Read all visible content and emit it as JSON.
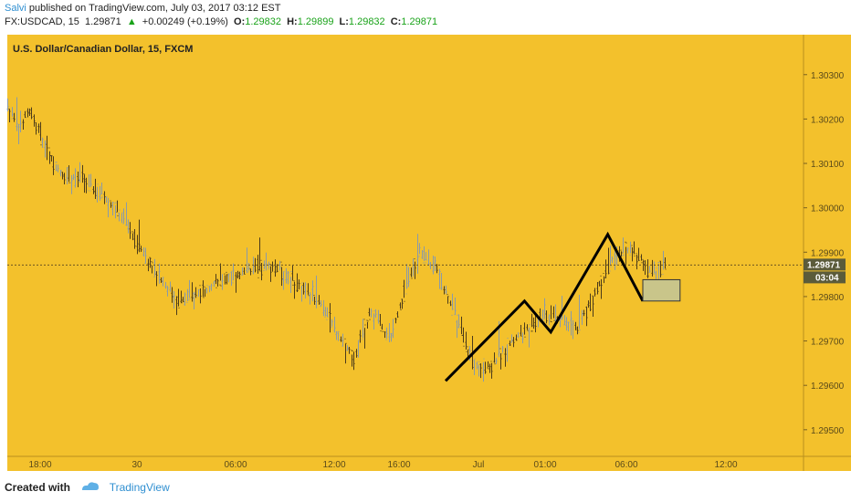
{
  "header": {
    "author": "Salvi",
    "published_text": "published on TradingView.com, July 03, 2017 03:12 EST",
    "symbol": "FX:USDCAD, 15",
    "last": "1.29871",
    "change": "+0.00249 (+0.19%)",
    "o_label": "O:",
    "o_value": "1.29832",
    "h_label": "H:",
    "h_value": "1.29899",
    "l_label": "L:",
    "l_value": "1.29832",
    "c_label": "C:",
    "c_value": "1.29871"
  },
  "footer": {
    "created_with": "Created with",
    "brand": "TradingView"
  },
  "colors": {
    "background": "#f3c12c",
    "bar": "#8a9aa8",
    "bar_dark": "#4a3a1a",
    "line": "#000000",
    "box_fill": "#c9c58a",
    "price_tag": "#5b5b3a"
  },
  "icons": [
    "up-triangle-icon",
    "tradingview-cloud-icon"
  ],
  "chart_data": {
    "type": "ohlc",
    "title": "U.S. Dollar/Canadian Dollar, 15, FXCM",
    "y_ticks": [
      "1.30300",
      "1.30200",
      "1.30100",
      "1.30000",
      "1.29900",
      "1.29800",
      "1.29700",
      "1.29600",
      "1.29500"
    ],
    "y_tick_values": [
      1.303,
      1.302,
      1.301,
      1.3,
      1.299,
      1.298,
      1.297,
      1.296,
      1.295
    ],
    "ylim": [
      1.2944,
      1.3039
    ],
    "x_ticks": [
      "18:00",
      "30",
      "06:00",
      "12:00",
      "16:00",
      "Jul",
      "01:00",
      "06:00",
      "12:00"
    ],
    "current_price": "1.29871",
    "current_price_value": 1.29871,
    "countdown": "03:04",
    "price_path": [
      {
        "t": 0,
        "p": 1.3023
      },
      {
        "t": 5,
        "p": 1.3018
      },
      {
        "t": 10,
        "p": 1.3022
      },
      {
        "t": 16,
        "p": 1.3015
      },
      {
        "t": 24,
        "p": 1.3008
      },
      {
        "t": 34,
        "p": 1.3006
      },
      {
        "t": 44,
        "p": 1.3003
      },
      {
        "t": 52,
        "p": 1.2998
      },
      {
        "t": 62,
        "p": 1.299
      },
      {
        "t": 70,
        "p": 1.2984
      },
      {
        "t": 78,
        "p": 1.2979
      },
      {
        "t": 88,
        "p": 1.2981
      },
      {
        "t": 98,
        "p": 1.2984
      },
      {
        "t": 110,
        "p": 1.2986
      },
      {
        "t": 122,
        "p": 1.2987
      },
      {
        "t": 134,
        "p": 1.2982
      },
      {
        "t": 142,
        "p": 1.2979
      },
      {
        "t": 150,
        "p": 1.2972
      },
      {
        "t": 158,
        "p": 1.2966
      },
      {
        "t": 166,
        "p": 1.2977
      },
      {
        "t": 174,
        "p": 1.297
      },
      {
        "t": 182,
        "p": 1.2982
      },
      {
        "t": 188,
        "p": 1.299
      },
      {
        "t": 196,
        "p": 1.2986
      },
      {
        "t": 204,
        "p": 1.2976
      },
      {
        "t": 212,
        "p": 1.2965
      },
      {
        "t": 220,
        "p": 1.2964
      },
      {
        "t": 228,
        "p": 1.2969
      },
      {
        "t": 236,
        "p": 1.2972
      },
      {
        "t": 244,
        "p": 1.2976
      },
      {
        "t": 252,
        "p": 1.2975
      },
      {
        "t": 260,
        "p": 1.2973
      },
      {
        "t": 268,
        "p": 1.2981
      },
      {
        "t": 276,
        "p": 1.2988
      },
      {
        "t": 282,
        "p": 1.2991
      },
      {
        "t": 288,
        "p": 1.2989
      },
      {
        "t": 294,
        "p": 1.2985
      },
      {
        "t": 300,
        "p": 1.2987
      }
    ],
    "overlays": {
      "zigzag": [
        {
          "t": 200,
          "p": 1.2961
        },
        {
          "t": 236,
          "p": 1.2979
        },
        {
          "t": 248,
          "p": 1.2972
        },
        {
          "t": 274,
          "p": 1.2994
        },
        {
          "t": 290,
          "p": 1.2979
        }
      ],
      "box": {
        "t0": 290,
        "t1": 307,
        "p_top": 1.29838,
        "p_bottom": 1.2979
      }
    }
  }
}
